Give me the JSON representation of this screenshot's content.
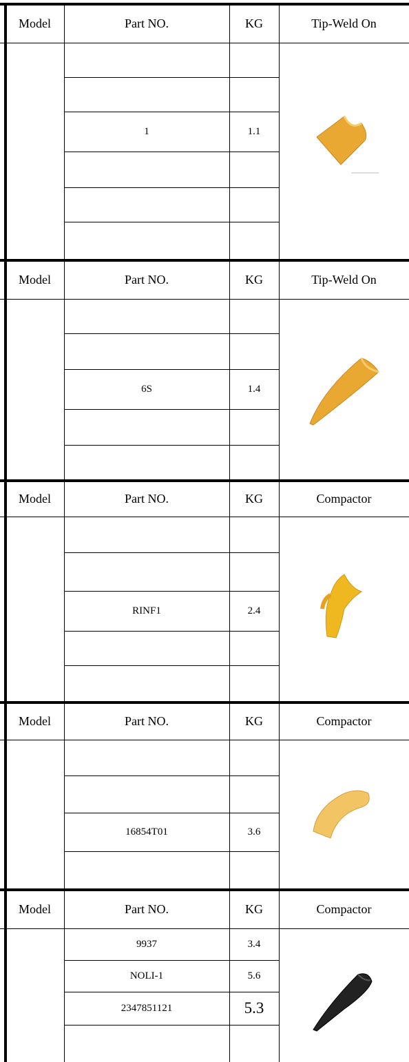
{
  "sections": [
    {
      "header": {
        "model": "Model",
        "part_no": "Part NO.",
        "kg": "KG",
        "type": "Tip-Weld On"
      },
      "rows": [
        {
          "part_no": "1",
          "kg": "1.1"
        }
      ]
    },
    {
      "header": {
        "model": "Model",
        "part_no": "Part NO.",
        "kg": "KG",
        "type": "Tip-Weld On"
      },
      "rows": [
        {
          "part_no": "6S",
          "kg": "1.4"
        }
      ]
    },
    {
      "header": {
        "model": "Model",
        "part_no": "Part NO.",
        "kg": "KG",
        "type": "Compactor"
      },
      "rows": [
        {
          "part_no": "RINF1",
          "kg": "2.4"
        }
      ]
    },
    {
      "header": {
        "model": "Model",
        "part_no": "Part NO.",
        "kg": "KG",
        "type": "Compactor"
      },
      "rows": [
        {
          "part_no": "16854T01",
          "kg": "3.6"
        }
      ]
    },
    {
      "header": {
        "model": "Model",
        "part_no": "Part NO.",
        "kg": "KG",
        "type": "Compactor"
      },
      "rows": [
        {
          "part_no": "9937",
          "kg": "3.4"
        },
        {
          "part_no": "NOLI-1",
          "kg": "5.6"
        },
        {
          "part_no": "2347851121",
          "kg": "5.3"
        }
      ]
    }
  ]
}
